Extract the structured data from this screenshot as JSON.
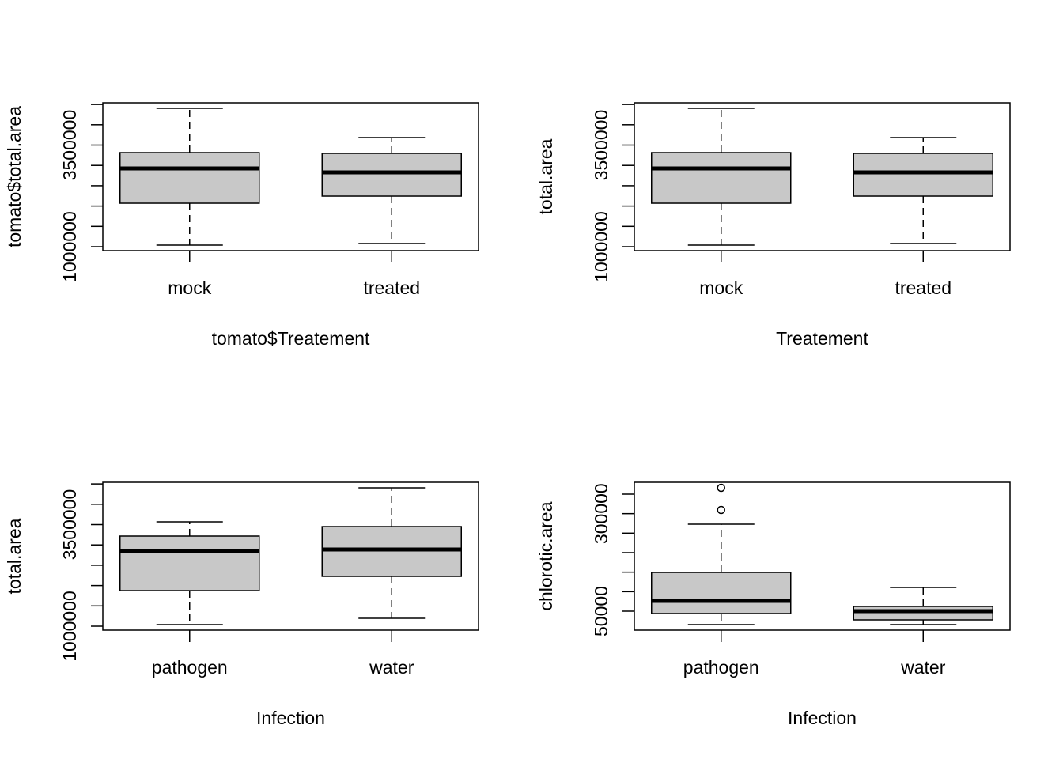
{
  "chart_data": [
    {
      "type": "box",
      "x_label": "tomato$Treatement",
      "y_label": "tomato$total.area",
      "categories": [
        "mock",
        "treated"
      ],
      "boxes": [
        {
          "whisker_low": 1039000,
          "q1": 2070000,
          "median": 2926000,
          "q3": 3315000,
          "whisker_high": 4405000
        },
        {
          "whisker_low": 1078000,
          "q1": 2245000,
          "median": 2829000,
          "q3": 3296000,
          "whisker_high": 3685000
        }
      ],
      "color": "#c8c8c8",
      "ylim": [
        903000,
        4541000
      ],
      "yticks": [
        1000000,
        {
          "value": 1500000,
          "label": null
        },
        {
          "value": 2000000,
          "label": null
        },
        {
          "value": 2500000,
          "label": null
        },
        {
          "value": 3000000,
          "label": null
        },
        3500000,
        {
          "value": 4000000,
          "label": null
        },
        {
          "value": 4500000,
          "label": null
        }
      ]
    },
    {
      "type": "box",
      "x_label": "Treatement",
      "y_label": "total.area",
      "categories": [
        "mock",
        "treated"
      ],
      "boxes": [
        {
          "whisker_low": 1039000,
          "q1": 2070000,
          "median": 2926000,
          "q3": 3315000,
          "whisker_high": 4405000
        },
        {
          "whisker_low": 1078000,
          "q1": 2245000,
          "median": 2829000,
          "q3": 3296000,
          "whisker_high": 3685000
        }
      ],
      "color": "#c8c8c8",
      "ylim": [
        903000,
        4541000
      ],
      "yticks": [
        1000000,
        {
          "value": 1500000,
          "label": null
        },
        {
          "value": 2000000,
          "label": null
        },
        {
          "value": 2500000,
          "label": null
        },
        {
          "value": 3000000,
          "label": null
        },
        3500000,
        {
          "value": 4000000,
          "label": null
        },
        {
          "value": 4500000,
          "label": null
        }
      ]
    },
    {
      "type": "box",
      "x_label": "Infection",
      "y_label": "total.area",
      "categories": [
        "pathogen",
        "water"
      ],
      "boxes": [
        {
          "whisker_low": 1039000,
          "q1": 1875000,
          "median": 2848000,
          "q3": 3218000,
          "whisker_high": 3568000
        },
        {
          "whisker_low": 1195000,
          "q1": 2226000,
          "median": 2887000,
          "q3": 3451000,
          "whisker_high": 4405000
        }
      ],
      "color": "#c8c8c8",
      "ylim": [
        903000,
        4541000
      ],
      "yticks": [
        1000000,
        {
          "value": 1500000,
          "label": null
        },
        {
          "value": 2000000,
          "label": null
        },
        {
          "value": 2500000,
          "label": null
        },
        {
          "value": 3000000,
          "label": null
        },
        3500000,
        {
          "value": 4000000,
          "label": null
        },
        {
          "value": 4500000,
          "label": null
        }
      ]
    },
    {
      "type": "box",
      "x_label": "Infection",
      "y_label": "chlorotic.area",
      "categories": [
        "pathogen",
        "water"
      ],
      "boxes": [
        {
          "whisker_low": 15500,
          "q1": 43900,
          "median": 76400,
          "q3": 149300,
          "whisker_high": 273000,
          "outliers": [
            309500,
            366200
          ]
        },
        {
          "whisker_low": 15500,
          "q1": 27700,
          "median": 50000,
          "q3": 62200,
          "whisker_high": 110800
        }
      ],
      "color": "#c8c8c8",
      "ylim": [
        1350,
        380400
      ],
      "yticks": [
        50000,
        {
          "value": 100000,
          "label": null
        },
        {
          "value": 150000,
          "label": null
        },
        {
          "value": 200000,
          "label": null
        },
        {
          "value": 250000,
          "label": null
        },
        300000,
        {
          "value": 350000,
          "label": null
        }
      ]
    }
  ]
}
